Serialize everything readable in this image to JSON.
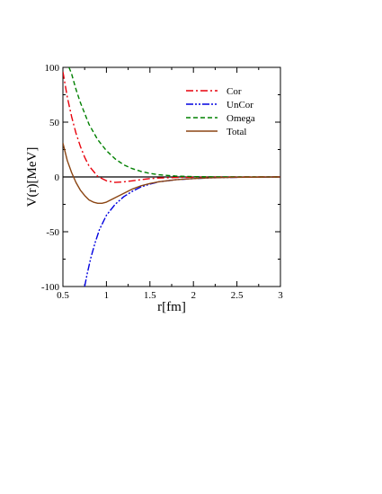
{
  "chart_data": {
    "type": "line",
    "title": "",
    "xlabel": "r[fm]",
    "ylabel": "V(r)[MeV]",
    "xlim": [
      0.5,
      3
    ],
    "ylim": [
      -100,
      100
    ],
    "xticks": [
      "0.5",
      "1",
      "1.5",
      "2",
      "2.5",
      "3"
    ],
    "yticks": [
      "100",
      "50",
      "0",
      "-50",
      "-100"
    ],
    "grid": false,
    "legend_position": "top-right",
    "series": [
      {
        "name": "Cor",
        "color": "#e8000b",
        "style": "dash-dot",
        "x": [
          0.5,
          0.55,
          0.6,
          0.65,
          0.7,
          0.75,
          0.8,
          0.9,
          1.0,
          1.1,
          1.2,
          1.3,
          1.4,
          1.5,
          1.6,
          1.8,
          2.0,
          2.2,
          2.5,
          3.0
        ],
        "y": [
          96,
          73,
          55,
          40,
          28,
          18,
          10,
          0.5,
          -3.5,
          -5,
          -4.5,
          -3.5,
          -2.5,
          -1.5,
          -1.0,
          -0.5,
          -0.2,
          -0.1,
          0,
          0
        ]
      },
      {
        "name": "UnCor",
        "color": "#0000e0",
        "style": "dash-dot-dot",
        "x": [
          0.75,
          0.78,
          0.82,
          0.87,
          0.92,
          1.0,
          1.1,
          1.2,
          1.3,
          1.4,
          1.5,
          1.6,
          1.8,
          2.0,
          2.2,
          2.5,
          3.0
        ],
        "y": [
          -100,
          -88,
          -74,
          -60,
          -48,
          -35,
          -25,
          -18,
          -13,
          -9,
          -6.5,
          -4.5,
          -2.5,
          -1.5,
          -0.8,
          -0.3,
          0
        ]
      },
      {
        "name": "Omega",
        "color": "#008000",
        "style": "dashed",
        "x": [
          0.57,
          0.6,
          0.65,
          0.7,
          0.8,
          0.9,
          1.0,
          1.1,
          1.2,
          1.3,
          1.4,
          1.5,
          1.6,
          1.8,
          2.0,
          2.2,
          2.5,
          3.0
        ],
        "y": [
          100,
          94,
          80,
          68,
          48,
          34,
          24,
          16.5,
          11,
          7.5,
          5,
          3.2,
          2.0,
          0.8,
          0.3,
          0.1,
          0,
          0
        ]
      },
      {
        "name": "Total",
        "color": "#8b4513",
        "style": "solid",
        "x": [
          0.5,
          0.55,
          0.6,
          0.65,
          0.7,
          0.75,
          0.8,
          0.85,
          0.9,
          0.95,
          1.0,
          1.1,
          1.2,
          1.3,
          1.4,
          1.5,
          1.6,
          1.8,
          2.0,
          2.2,
          2.5,
          3.0
        ],
        "y": [
          31,
          15,
          4,
          -5,
          -12,
          -17,
          -21,
          -23,
          -24,
          -24,
          -23,
          -19,
          -15,
          -11,
          -8,
          -6,
          -4.5,
          -2.5,
          -1.5,
          -0.8,
          -0.3,
          0
        ]
      }
    ]
  }
}
